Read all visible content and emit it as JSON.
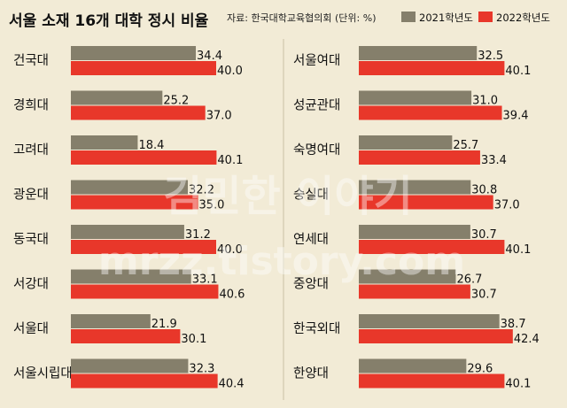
{
  "title": "서울 소재 16개 대학 정시 비율",
  "source": "자료: 한국대학교육협의회 (단위: %)",
  "watermark": [
    "김민한 이야기",
    "mrzz.tistory.com"
  ],
  "colors": {
    "background": "#f2ebd6",
    "series_2021": "#857f6b",
    "series_2022": "#e8372a",
    "divider": "#c9c1a4",
    "text": "#111111"
  },
  "chart_data": [
    {
      "type": "bar",
      "orientation": "horizontal",
      "xlim": [
        0,
        45
      ],
      "categories": [
        "건국대",
        "경희대",
        "고려대",
        "광운대",
        "동국대",
        "서강대",
        "서울대",
        "서울시립대"
      ],
      "series": [
        {
          "name": "2021학년도",
          "values": [
            34.4,
            25.2,
            18.4,
            32.2,
            31.2,
            33.1,
            21.9,
            32.3
          ]
        },
        {
          "name": "2022학년도",
          "values": [
            40.0,
            37.0,
            40.1,
            35.0,
            40.0,
            40.6,
            30.1,
            40.4
          ]
        }
      ]
    },
    {
      "type": "bar",
      "orientation": "horizontal",
      "xlim": [
        0,
        45
      ],
      "categories": [
        "서울여대",
        "성균관대",
        "숙명여대",
        "숭실대",
        "연세대",
        "중앙대",
        "한국외대",
        "한양대"
      ],
      "series": [
        {
          "name": "2021학년도",
          "values": [
            32.5,
            31.0,
            25.7,
            30.8,
            30.7,
            26.7,
            38.7,
            29.6
          ]
        },
        {
          "name": "2022학년도",
          "values": [
            40.1,
            39.4,
            33.4,
            37.0,
            40.1,
            30.7,
            42.4,
            40.1
          ]
        }
      ]
    }
  ]
}
